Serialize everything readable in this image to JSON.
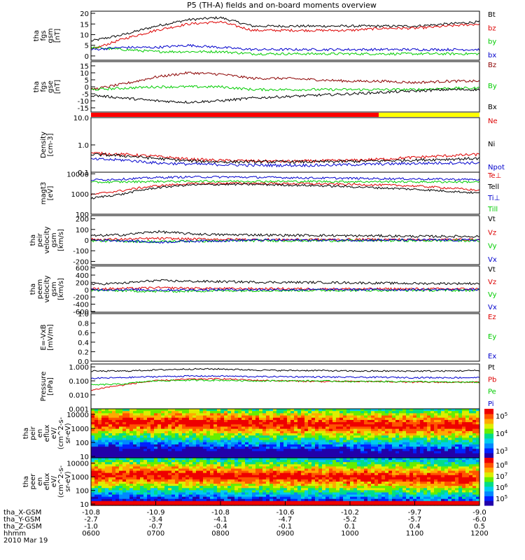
{
  "title": "P5 (TH-A) fields and on-board moments overview",
  "date": "2010 Mar 19",
  "orbit": {
    "labels": [
      "tha_X-GSM",
      "tha_Y-GSM",
      "tha_Z-GSM",
      "hhmm"
    ],
    "rows": [
      [
        "-10.8",
        "-10.9",
        "-10.8",
        "-10.6",
        "-10.2",
        "-9.7",
        "-9.0"
      ],
      [
        "-2.7",
        "-3.4",
        "-4.1",
        "-4.7",
        "-5.2",
        "-5.7",
        "-6.0"
      ],
      [
        "-1.0",
        "-0.7",
        "-0.4",
        "-0.1",
        "0.1",
        "0.4",
        "0.5"
      ],
      [
        "0600",
        "0700",
        "0800",
        "0900",
        "1000",
        "1100",
        "1200"
      ]
    ]
  },
  "chart_data": [
    {
      "type": "line",
      "panel": "fgs_gsm",
      "ylabel": [
        "tha",
        "fgs",
        "gsm",
        "[nT]"
      ],
      "ylim": [
        -2,
        21
      ],
      "yticks": [
        "20",
        "15",
        "10",
        "5",
        "0",
        "-5"
      ],
      "x_hours": [
        6.0,
        6.5,
        7.0,
        7.5,
        8.0,
        8.5,
        9.0,
        9.5,
        10.0,
        10.5,
        11.0,
        11.5,
        12.0
      ],
      "series": [
        {
          "name": "Bt",
          "color": "#000000",
          "values": [
            7,
            10,
            14,
            17,
            18,
            14,
            14,
            14,
            14,
            14,
            14,
            15,
            16
          ]
        },
        {
          "name": "bz",
          "color": "#dd0000",
          "values": [
            3,
            8,
            12,
            15,
            16,
            12,
            12,
            12,
            12,
            13,
            13,
            14,
            15
          ]
        },
        {
          "name": "by",
          "color": "#00cc00",
          "values": [
            4,
            3,
            2,
            2,
            2,
            1,
            1,
            1,
            1,
            1,
            1,
            1,
            1
          ]
        },
        {
          "name": "bx",
          "color": "#0000cc",
          "values": [
            3,
            4,
            4,
            5,
            4,
            3,
            3,
            3,
            3,
            3,
            3,
            3,
            3
          ]
        }
      ]
    },
    {
      "type": "line",
      "panel": "fgs_gse",
      "ylabel": [
        "tha",
        "fgs",
        "gse",
        "[nT]"
      ],
      "ylim": [
        -18,
        18
      ],
      "yticks": [
        "15",
        "10",
        "5",
        "0",
        "-5",
        "-10",
        "-15"
      ],
      "x_hours": [
        6.0,
        6.5,
        7.0,
        7.5,
        8.0,
        8.5,
        9.0,
        9.5,
        10.0,
        10.5,
        11.0,
        11.5,
        12.0
      ],
      "series": [
        {
          "name": "Bz",
          "color": "#8b0000",
          "values": [
            -2,
            2,
            7,
            10,
            9,
            6,
            6,
            5,
            4,
            4,
            3,
            4,
            4
          ]
        },
        {
          "name": "By",
          "color": "#00cc00",
          "values": [
            -2,
            -1,
            0,
            0,
            0,
            -2,
            -2,
            -2,
            -2,
            -2,
            -2,
            -1,
            -1
          ]
        },
        {
          "name": "Bx",
          "color": "#000000",
          "values": [
            -6,
            -8,
            -10,
            -11,
            -10,
            -8,
            -7,
            -6,
            -5,
            -4,
            -3,
            -2,
            -2
          ]
        }
      ]
    },
    {
      "type": "line",
      "panel": "density",
      "ylabel": [
        "Density",
        "[cm-3]"
      ],
      "yscale": "log",
      "ylim": [
        0.1,
        10
      ],
      "yticks": [
        "10.0",
        "1.0",
        "0.1"
      ],
      "x_hours": [
        6.0,
        6.5,
        7.0,
        7.5,
        8.0,
        8.5,
        9.0,
        9.5,
        10.0,
        10.5,
        11.0,
        11.5,
        12.0
      ],
      "series": [
        {
          "name": "Ne",
          "color": "#dd0000",
          "values": [
            0.5,
            0.45,
            0.38,
            0.3,
            0.27,
            0.26,
            0.25,
            0.26,
            0.27,
            0.3,
            0.35,
            0.4,
            0.45
          ]
        },
        {
          "name": "Ni",
          "color": "#000000",
          "values": [
            0.45,
            0.4,
            0.32,
            0.26,
            0.24,
            0.24,
            0.24,
            0.24,
            0.25,
            0.26,
            0.28,
            0.3,
            0.32
          ]
        },
        {
          "name": "Npot",
          "color": "#0000cc",
          "values": [
            0.3,
            0.28,
            0.22,
            0.2,
            0.19,
            0.18,
            0.18,
            0.18,
            0.19,
            0.2,
            0.21,
            0.22,
            0.22
          ]
        }
      ]
    },
    {
      "type": "line",
      "panel": "temperature",
      "ylabel": [
        "magt3",
        "[eV]"
      ],
      "yscale": "log",
      "ylim": [
        100,
        12000
      ],
      "yticks": [
        "10000",
        "1000",
        "100"
      ],
      "x_hours": [
        6.0,
        6.5,
        7.0,
        7.5,
        8.0,
        8.5,
        9.0,
        9.5,
        10.0,
        10.5,
        11.0,
        11.5,
        12.0
      ],
      "series": [
        {
          "name": "Te⊥",
          "color": "#dd0000",
          "values": [
            900,
            1500,
            2500,
            3200,
            3400,
            3400,
            3300,
            3200,
            3000,
            2800,
            2500,
            2000,
            1500
          ]
        },
        {
          "name": "Tell",
          "color": "#000000",
          "values": [
            600,
            1000,
            2000,
            2800,
            3000,
            3000,
            2800,
            2600,
            2300,
            2000,
            1700,
            1400,
            1100
          ]
        },
        {
          "name": "Ti⊥",
          "color": "#0000cc",
          "values": [
            5000,
            5500,
            6500,
            7000,
            7000,
            6800,
            6500,
            6200,
            6000,
            5800,
            5600,
            5400,
            5200
          ]
        },
        {
          "name": "Till",
          "color": "#00cc00",
          "values": [
            3800,
            4000,
            4200,
            4300,
            4300,
            4300,
            4200,
            4200,
            4100,
            4100,
            4000,
            4000,
            4000
          ]
        }
      ]
    },
    {
      "type": "line",
      "panel": "peir_velocity",
      "ylabel": [
        "tha",
        "peir",
        "velocity",
        "gsm",
        "[km/s]"
      ],
      "ylim": [
        -230,
        230
      ],
      "yticks": [
        "200",
        "100",
        "0",
        "-100",
        "-200"
      ],
      "x_hours": [
        6.0,
        6.5,
        7.0,
        7.5,
        8.0,
        8.5,
        9.0,
        9.5,
        10.0,
        10.5,
        11.0,
        11.5,
        12.0
      ],
      "series": [
        {
          "name": "Vt",
          "color": "#000000",
          "values": [
            40,
            50,
            80,
            60,
            50,
            50,
            45,
            45,
            40,
            40,
            35,
            35,
            35
          ]
        },
        {
          "name": "Vz",
          "color": "#dd0000",
          "values": [
            5,
            8,
            15,
            10,
            8,
            5,
            5,
            5,
            5,
            5,
            5,
            5,
            5
          ]
        },
        {
          "name": "Vy",
          "color": "#00cc00",
          "values": [
            -5,
            -10,
            -15,
            -10,
            -8,
            -5,
            -5,
            -5,
            -5,
            -5,
            -5,
            -5,
            -5
          ]
        },
        {
          "name": "Vx",
          "color": "#0000cc",
          "values": [
            0,
            -5,
            -20,
            -10,
            -5,
            0,
            0,
            0,
            0,
            0,
            0,
            0,
            0
          ]
        }
      ]
    },
    {
      "type": "line",
      "panel": "peem_velocity",
      "ylabel": [
        "tha",
        "peem",
        "velocity",
        "gsm",
        "[km/s]"
      ],
      "ylim": [
        -620,
        650
      ],
      "yticks": [
        "600",
        "400",
        "200",
        "0",
        "-200",
        "-400",
        "-600"
      ],
      "x_hours": [
        6.0,
        6.5,
        7.0,
        7.5,
        8.0,
        8.5,
        9.0,
        9.5,
        10.0,
        10.5,
        11.0,
        11.5,
        12.0
      ],
      "series": [
        {
          "name": "Vt",
          "color": "#000000",
          "values": [
            150,
            180,
            250,
            230,
            220,
            210,
            200,
            200,
            190,
            180,
            170,
            170,
            170
          ]
        },
        {
          "name": "Vz",
          "color": "#dd0000",
          "values": [
            20,
            30,
            50,
            40,
            30,
            25,
            25,
            20,
            20,
            20,
            20,
            20,
            20
          ]
        },
        {
          "name": "Vy",
          "color": "#00cc00",
          "values": [
            -20,
            -30,
            -50,
            -40,
            -30,
            -25,
            -25,
            -20,
            -20,
            -20,
            -20,
            -20,
            -20
          ]
        },
        {
          "name": "Vx",
          "color": "#0000cc",
          "values": [
            0,
            0,
            -10,
            -5,
            0,
            0,
            0,
            0,
            0,
            0,
            0,
            0,
            0
          ]
        }
      ]
    },
    {
      "type": "line",
      "panel": "exb_field",
      "ylabel": [
        "E=-VxB",
        "[mV/m]"
      ],
      "ylim": [
        0,
        1
      ],
      "yticks": [
        "1.0",
        "0.8",
        "0.6",
        "0.4",
        "0.2",
        "0.0"
      ],
      "series": [
        {
          "name": "Ez",
          "color": "#dd0000",
          "values": []
        },
        {
          "name": "Ey",
          "color": "#00cc00",
          "values": []
        },
        {
          "name": "Ex",
          "color": "#0000cc",
          "values": []
        }
      ]
    },
    {
      "type": "line",
      "panel": "pressure",
      "ylabel": [
        "Pressure",
        "[nPa]"
      ],
      "yscale": "log",
      "ylim": [
        0.001,
        1.6
      ],
      "yticks": [
        "1.000",
        "0.100",
        "0.010",
        "0.001"
      ],
      "x_hours": [
        6.0,
        6.5,
        7.0,
        7.5,
        8.0,
        8.5,
        9.0,
        9.5,
        10.0,
        10.5,
        11.0,
        11.5,
        12.0
      ],
      "series": [
        {
          "name": "Pt",
          "color": "#000000",
          "values": [
            0.5,
            0.5,
            0.6,
            0.7,
            0.7,
            0.6,
            0.55,
            0.55,
            0.5,
            0.5,
            0.5,
            0.5,
            0.55
          ]
        },
        {
          "name": "Pb",
          "color": "#dd0000",
          "values": [
            0.02,
            0.05,
            0.1,
            0.13,
            0.14,
            0.11,
            0.1,
            0.09,
            0.09,
            0.09,
            0.08,
            0.08,
            0.08
          ]
        },
        {
          "name": "Pe",
          "color": "#00cc00",
          "values": [
            0.05,
            0.06,
            0.1,
            0.11,
            0.11,
            0.1,
            0.1,
            0.1,
            0.09,
            0.09,
            0.09,
            0.08,
            0.08
          ]
        },
        {
          "name": "Pi",
          "color": "#0000cc",
          "values": [
            0.15,
            0.17,
            0.2,
            0.22,
            0.22,
            0.2,
            0.2,
            0.19,
            0.18,
            0.18,
            0.17,
            0.17,
            0.17
          ]
        }
      ]
    },
    {
      "type": "heatmap",
      "panel": "peir_spectrogram",
      "ylabel": [
        "tha",
        "peir",
        "en",
        "eflux",
        "eV/",
        "(cm^2-s-",
        "sr-eV)"
      ],
      "yscale": "log",
      "ylim": [
        8,
        25000
      ],
      "yticks": [
        "10000",
        "1000",
        "100",
        "10"
      ],
      "colorbar_ticks": [
        "10^5",
        "10^4",
        "10^3"
      ],
      "peak_energy_eV": 3000
    },
    {
      "type": "heatmap",
      "panel": "peer_spectrogram",
      "ylabel": [
        "tha",
        "peer",
        "en",
        "eflux",
        "eV/",
        "(cm^2-s-",
        "sr-eV)"
      ],
      "yscale": "log",
      "ylim": [
        8,
        25000
      ],
      "yticks": [
        "10000",
        "1000",
        "100",
        "10"
      ],
      "colorbar_ticks": [
        "10^8",
        "10^7",
        "10^6",
        "10^5"
      ],
      "peak_energy_eV": 1500
    }
  ]
}
